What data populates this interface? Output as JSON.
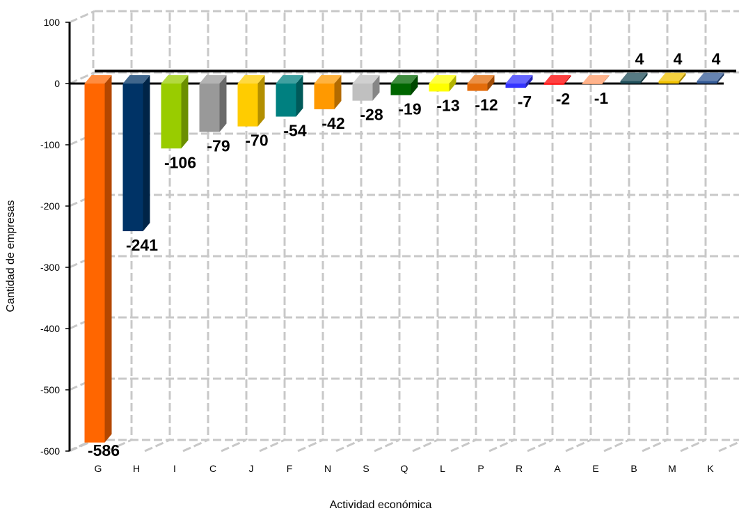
{
  "chart_data": {
    "type": "bar",
    "categories": [
      "G",
      "H",
      "I",
      "C",
      "J",
      "F",
      "N",
      "S",
      "Q",
      "L",
      "P",
      "R",
      "A",
      "E",
      "B",
      "M",
      "K"
    ],
    "values": [
      -586,
      -241,
      -106,
      -79,
      -70,
      -54,
      -42,
      -28,
      -19,
      -13,
      -12,
      -7,
      -2,
      -1,
      4,
      4,
      4
    ],
    "colors": [
      "#FF6600",
      "#003366",
      "#99CC00",
      "#999999",
      "#FFCC00",
      "#008080",
      "#FF9900",
      "#C0C0C0",
      "#006600",
      "#FFFF00",
      "#E46C0A",
      "#3333FF",
      "#FF0000",
      "#FF9966",
      "#1F4E5A",
      "#F2C200",
      "#335A96"
    ],
    "xlabel": "Actividad económica",
    "ylabel": "Cantidad de empresas",
    "ylim": [
      -600,
      100
    ],
    "yticks": [
      100,
      0,
      -100,
      -200,
      -300,
      -400,
      -500,
      -600
    ],
    "grid": true,
    "style": "3d-bar"
  }
}
